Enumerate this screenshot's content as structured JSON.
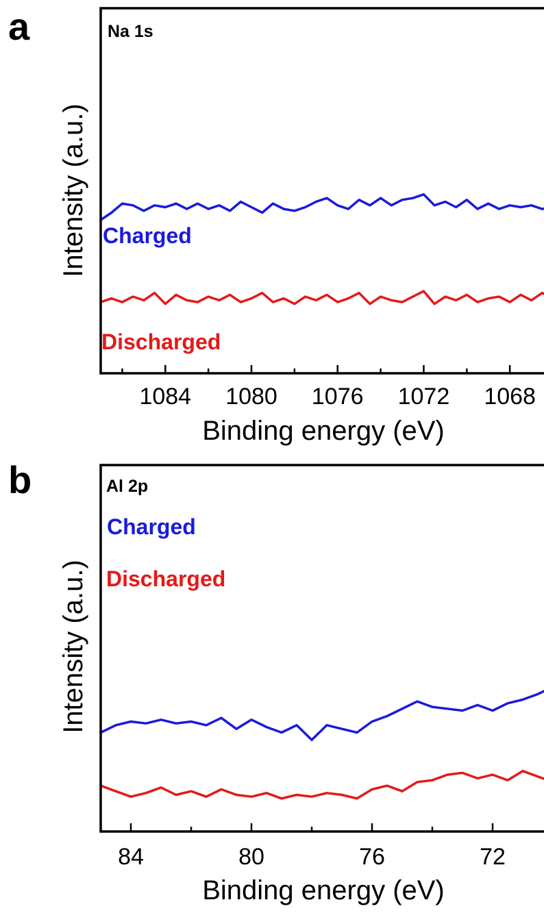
{
  "chart_data": [
    {
      "type": "line",
      "panel": "a",
      "title": "Na 1s",
      "xlabel": "Binding energy (eV)",
      "ylabel": "Intensity (a.u.)",
      "xlim": [
        1087,
        1066
      ],
      "x_reversed": true,
      "ylim": [
        0,
        100
      ],
      "x_ticks": [
        1084,
        1080,
        1076,
        1072,
        1068
      ],
      "x_tick_labels": [
        "1084",
        "1080",
        "1076",
        "1072",
        "1068"
      ],
      "y_ticks_shown": false,
      "grid": false,
      "colors": {
        "Charged": "#1a1adc",
        "Discharged": "#e31a1a"
      },
      "series": [
        {
          "name": "Charged",
          "x": [
            1087,
            1086.5,
            1086,
            1085.5,
            1085,
            1084.5,
            1084,
            1083.5,
            1083,
            1082.5,
            1082,
            1081.5,
            1081,
            1080.5,
            1080,
            1079.5,
            1079,
            1078.5,
            1078,
            1077.5,
            1077,
            1076.5,
            1076,
            1075.5,
            1075,
            1074.5,
            1074,
            1073.5,
            1073,
            1072.5,
            1072,
            1071.5,
            1071,
            1070.5,
            1070,
            1069.5,
            1069,
            1068.5,
            1068,
            1067.5,
            1067,
            1066.5,
            1066
          ],
          "values": [
            42.0,
            44.0,
            46.5,
            46.0,
            44.5,
            46.0,
            45.5,
            46.5,
            45.0,
            46.5,
            45.0,
            46.0,
            44.5,
            47.0,
            45.5,
            44.0,
            46.5,
            45.0,
            44.5,
            45.5,
            47.0,
            48.0,
            46.0,
            45.0,
            47.5,
            46.0,
            48.0,
            46.0,
            47.5,
            48.0,
            49.0,
            46.0,
            47.0,
            45.5,
            47.5,
            45.0,
            46.5,
            45.0,
            46.0,
            45.5,
            46.0,
            45.0,
            45.5
          ]
        },
        {
          "name": "Discharged",
          "x": [
            1087,
            1086.5,
            1086,
            1085.5,
            1085,
            1084.5,
            1084,
            1083.5,
            1083,
            1082.5,
            1082,
            1081.5,
            1081,
            1080.5,
            1080,
            1079.5,
            1079,
            1078.5,
            1078,
            1077.5,
            1077,
            1076.5,
            1076,
            1075.5,
            1075,
            1074.5,
            1074,
            1073.5,
            1073,
            1072.5,
            1072,
            1071.5,
            1071,
            1070.5,
            1070,
            1069.5,
            1069,
            1068.5,
            1068,
            1067.5,
            1067,
            1066.5,
            1066
          ],
          "values": [
            19.5,
            20.5,
            19.5,
            21.0,
            20.0,
            22.0,
            19.0,
            21.5,
            20.0,
            19.5,
            21.0,
            20.0,
            21.5,
            19.5,
            20.5,
            22.0,
            19.5,
            20.5,
            19.0,
            21.0,
            20.0,
            21.5,
            19.5,
            20.5,
            22.0,
            19.0,
            21.0,
            20.0,
            19.5,
            21.0,
            22.5,
            19.0,
            21.0,
            20.0,
            21.5,
            19.5,
            20.5,
            21.0,
            19.5,
            21.5,
            20.0,
            22.0,
            20.5
          ]
        }
      ]
    },
    {
      "type": "line",
      "panel": "b",
      "title": "Al 2p",
      "xlabel": "Binding energy (eV)",
      "ylabel": "Intensity (a.u.)",
      "xlim": [
        85,
        70
      ],
      "x_reversed": true,
      "ylim": [
        0,
        100
      ],
      "x_ticks": [
        84,
        80,
        76,
        72
      ],
      "x_tick_labels": [
        "84",
        "80",
        "76",
        "72"
      ],
      "y_ticks_shown": false,
      "grid": false,
      "colors": {
        "Charged": "#1a1adc",
        "Discharged": "#e31a1a"
      },
      "series": [
        {
          "name": "Charged",
          "x": [
            85,
            84.5,
            84,
            83.5,
            83,
            82.5,
            82,
            81.5,
            81,
            80.5,
            80,
            79.5,
            79,
            78.5,
            78,
            77.5,
            77,
            76.5,
            76,
            75.5,
            75,
            74.5,
            74,
            73.5,
            73,
            72.5,
            72,
            71.5,
            71,
            70.5,
            70
          ],
          "values": [
            27.0,
            29.0,
            30.0,
            29.5,
            30.5,
            29.5,
            30.0,
            29.0,
            31.0,
            28.0,
            30.5,
            28.5,
            27.0,
            29.0,
            25.0,
            29.0,
            28.0,
            27.0,
            30.0,
            31.5,
            33.5,
            35.5,
            34.0,
            33.5,
            33.0,
            34.5,
            33.0,
            35.0,
            36.0,
            37.5,
            39.5
          ]
        },
        {
          "name": "Discharged",
          "x": [
            85,
            84.5,
            84,
            83.5,
            83,
            82.5,
            82,
            81.5,
            81,
            80.5,
            80,
            79.5,
            79,
            78.5,
            78,
            77.5,
            77,
            76.5,
            76,
            75.5,
            75,
            74.5,
            74,
            73.5,
            73,
            72.5,
            72,
            71.5,
            71,
            70.5,
            70
          ],
          "values": [
            12.5,
            11.0,
            9.5,
            10.5,
            12.0,
            10.0,
            11.0,
            9.5,
            11.5,
            10.0,
            9.5,
            10.5,
            9.0,
            10.0,
            9.5,
            10.5,
            10.0,
            9.0,
            11.5,
            12.5,
            11.0,
            13.5,
            14.0,
            15.5,
            16.0,
            14.5,
            15.5,
            14.0,
            16.5,
            15.0,
            13.5
          ]
        }
      ]
    }
  ]
}
